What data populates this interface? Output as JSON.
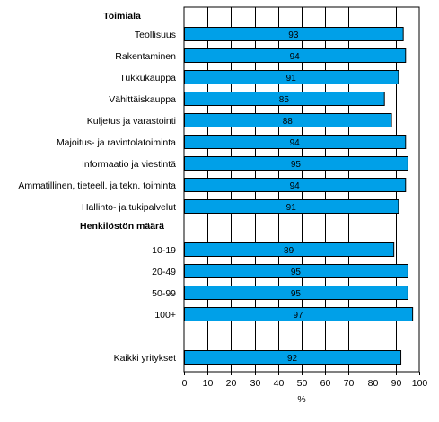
{
  "chart_data": {
    "type": "bar",
    "orientation": "horizontal",
    "title": "",
    "xlabel": "%",
    "ylabel": "",
    "xlim": [
      0,
      100
    ],
    "x_ticks": [
      0,
      10,
      20,
      30,
      40,
      50,
      60,
      70,
      80,
      90,
      100
    ],
    "grid": "vertical",
    "legend": "none",
    "bar_color": "#00a0e8",
    "groups": [
      {
        "label": "Toimiala",
        "items": [
          {
            "category": "Teollisuus",
            "value": 93
          },
          {
            "category": "Rakentaminen",
            "value": 94
          },
          {
            "category": "Tukkukauppa",
            "value": 91
          },
          {
            "category": "Vähittäiskauppa",
            "value": 85
          },
          {
            "category": "Kuljetus ja varastointi",
            "value": 88
          },
          {
            "category": "Majoitus- ja ravintolatoiminta",
            "value": 94
          },
          {
            "category": "Informaatio ja viestintä",
            "value": 95
          },
          {
            "category": "Ammatillinen, tieteell. ja tekn. toiminta",
            "value": 94
          },
          {
            "category": "Hallinto- ja tukipalvelut",
            "value": 91
          }
        ]
      },
      {
        "label": "Henkilöstön määrä",
        "items": [
          {
            "category": "10-19",
            "value": 89
          },
          {
            "category": "20-49",
            "value": 95
          },
          {
            "category": "50-99",
            "value": 95
          },
          {
            "category": "100+",
            "value": 97
          }
        ]
      },
      {
        "label": "",
        "items": [
          {
            "category": "Kaikki yritykset",
            "value": 92
          }
        ]
      }
    ]
  }
}
